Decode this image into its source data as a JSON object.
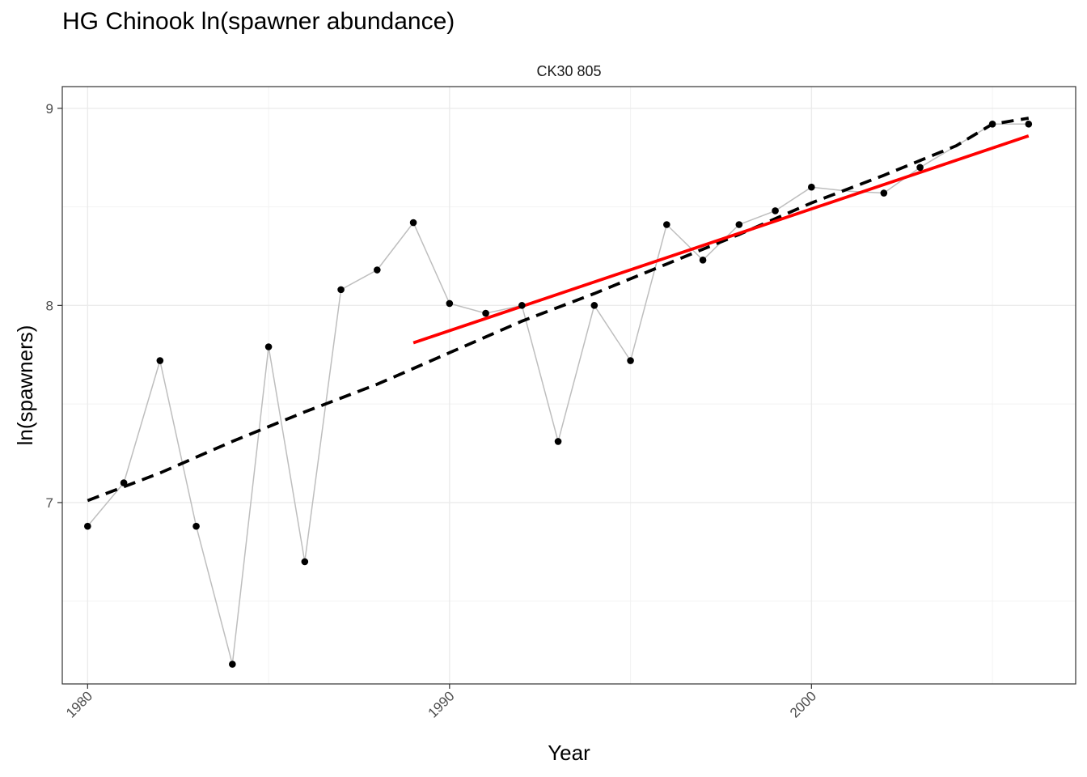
{
  "chart_data": {
    "type": "line",
    "title": "HG Chinook ln(spawner abundance)",
    "facet_label": "CK30 805",
    "xlabel": "Year",
    "ylabel": "ln(spawners)",
    "xlim": [
      1979.3,
      2007.3
    ],
    "ylim": [
      6.08,
      9.11
    ],
    "x_ticks": [
      1980,
      1990,
      2000
    ],
    "y_ticks": [
      7,
      8,
      9
    ],
    "grid": true,
    "series": [
      {
        "type": "line+points",
        "color": "#bebebe",
        "point_color": "#000000",
        "x": [
          1980,
          1981,
          1982,
          1983,
          1984,
          1985,
          1986,
          1987,
          1988,
          1989,
          1990,
          1991,
          1992,
          1993,
          1994,
          1995,
          1996,
          1997,
          1998,
          1999,
          2000,
          2001,
          2002,
          2003,
          2004,
          2005,
          2006
        ],
        "y": [
          6.88,
          7.1,
          7.72,
          6.88,
          6.18,
          7.79,
          6.7,
          8.08,
          8.18,
          8.42,
          8.01,
          7.96,
          8.0,
          7.31,
          8.0,
          7.72,
          8.41,
          8.23,
          8.41,
          8.48,
          8.6,
          8.58,
          8.57,
          8.7,
          8.81,
          8.92,
          8.92
        ],
        "points_shown": [
          1980,
          1981,
          1982,
          1983,
          1984,
          1985,
          1986,
          1987,
          1988,
          1989,
          1990,
          1991,
          1992,
          1993,
          1994,
          1995,
          1996,
          1997,
          1998,
          1999,
          2000,
          2002,
          2003,
          2005,
          2006
        ]
      },
      {
        "type": "dashed-line",
        "color": "#000000",
        "x": [
          1980,
          1982,
          1984,
          1986,
          1988,
          1990,
          1992,
          1994,
          1996,
          1998,
          2000,
          2002,
          2004,
          2005,
          2006
        ],
        "y": [
          7.01,
          7.15,
          7.31,
          7.46,
          7.6,
          7.76,
          7.92,
          8.06,
          8.21,
          8.36,
          8.52,
          8.66,
          8.81,
          8.92,
          8.95
        ]
      },
      {
        "type": "line",
        "color": "#ff0000",
        "x": [
          1989,
          2006
        ],
        "y": [
          7.81,
          8.86
        ]
      }
    ]
  }
}
